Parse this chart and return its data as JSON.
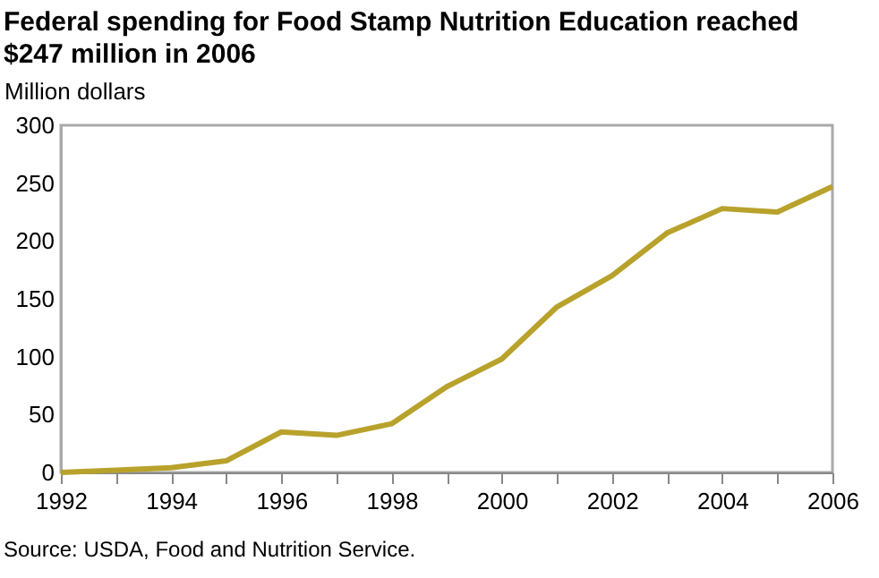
{
  "chart_data": {
    "type": "line",
    "title": "Federal spending for Food Stamp Nutrition Education reached $247 million in 2006",
    "ylabel": "Million dollars",
    "annotations": [
      "Source: USDA, Food and Nutrition Service."
    ],
    "x": [
      1992,
      1993,
      1994,
      1995,
      1996,
      1997,
      1998,
      1999,
      2000,
      2001,
      2002,
      2003,
      2004,
      2005,
      2006
    ],
    "series": [
      {
        "color": "#b8a22c",
        "values": [
          0,
          2,
          4,
          10,
          35,
          32,
          42,
          74,
          98,
          143,
          170,
          207,
          228,
          225,
          247
        ]
      }
    ],
    "xlim": [
      1992,
      2006
    ],
    "xticks": [
      1992,
      {
        "value": 1993,
        "label": null
      },
      1994,
      {
        "value": 1995,
        "label": null
      },
      1996,
      {
        "value": 1997,
        "label": null
      },
      1998,
      {
        "value": 1999,
        "label": null
      },
      2000,
      {
        "value": 2001,
        "label": null
      },
      2002,
      {
        "value": 2003,
        "label": null
      },
      2004,
      {
        "value": 2005,
        "label": null
      },
      2006
    ],
    "ylim": [
      0,
      300
    ],
    "yticks": [
      0,
      50,
      100,
      150,
      200,
      250,
      300
    ],
    "grid": false,
    "legend": false,
    "marker": "none",
    "line_style": "solid"
  }
}
